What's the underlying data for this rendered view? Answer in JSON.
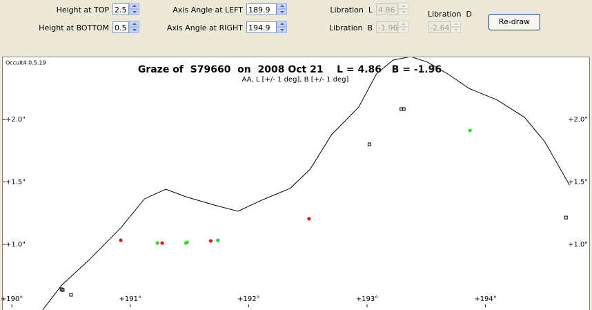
{
  "controls": {
    "height_top": {
      "label": "Height at TOP",
      "value": "2.5"
    },
    "height_bottom": {
      "label": "Height at BOTTOM",
      "value": "0.5"
    },
    "angle_left": {
      "label": "Axis Angle at LEFT",
      "value": "189.9"
    },
    "angle_right": {
      "label": "Axis Angle at RIGHT",
      "value": "194.9"
    },
    "libration_l": {
      "label": "Libration  L",
      "value": "4.86"
    },
    "libration_b": {
      "label": "Libration  B",
      "value": "-1.96"
    },
    "libration_d": {
      "label": "Libration  D",
      "value": "-2.64"
    },
    "redraw": "Re-draw"
  },
  "plot": {
    "version": "Occult4.0.5.19",
    "title": "Graze of  S79660  on  2008 Oct 21    L = 4.86   B = -1.96",
    "subtitle": "AA, L [+/- 1 deg], B [+/- 1 deg]",
    "xlim": [
      189.9,
      194.9
    ],
    "ylim": [
      0.5,
      2.5
    ],
    "xticks": [
      {
        "value": 190,
        "label": "+190°"
      },
      {
        "value": 191,
        "label": "+191°"
      },
      {
        "value": 192,
        "label": "+192°"
      },
      {
        "value": 193,
        "label": "+193°"
      },
      {
        "value": 194,
        "label": "+194°"
      }
    ],
    "yticks": [
      {
        "value": 1.0,
        "label": "+1.0\""
      },
      {
        "value": 1.5,
        "label": "+1.5\""
      },
      {
        "value": 2.0,
        "label": "+2.0\""
      }
    ],
    "profile": {
      "color": "#000000",
      "x": [
        190.26,
        190.42,
        190.66,
        190.92,
        191.12,
        191.3,
        191.47,
        191.71,
        191.91,
        192.11,
        192.35,
        192.52,
        192.7,
        192.93,
        193.08,
        193.22,
        193.37,
        193.51,
        193.69,
        193.86,
        194.1,
        194.33,
        194.5,
        194.71
      ],
      "y": [
        0.475,
        0.673,
        0.883,
        1.132,
        1.364,
        1.442,
        1.381,
        1.315,
        1.265,
        1.354,
        1.448,
        1.602,
        1.878,
        2.099,
        2.365,
        2.475,
        2.503,
        2.459,
        2.359,
        2.249,
        2.155,
        2.017,
        1.823,
        1.475
      ]
    },
    "points": [
      {
        "color": "#ee1111",
        "marker": "circle",
        "x": [
          190.92,
          191.27,
          191.68,
          192.51
        ],
        "y": [
          1.033,
          1.011,
          1.028,
          1.205
        ]
      },
      {
        "color": "#22dd22",
        "marker": "circle",
        "x": [
          191.23,
          191.47,
          191.48,
          191.74,
          193.87
        ],
        "y": [
          1.011,
          1.011,
          1.017,
          1.033,
          1.912
        ]
      },
      {
        "color": "#000000",
        "marker": "square",
        "x": [
          190.42,
          190.43,
          190.5,
          193.02,
          193.29,
          193.31,
          194.68
        ],
        "y": [
          0.641,
          0.635,
          0.597,
          1.801,
          2.083,
          2.083,
          1.215
        ]
      }
    ]
  }
}
